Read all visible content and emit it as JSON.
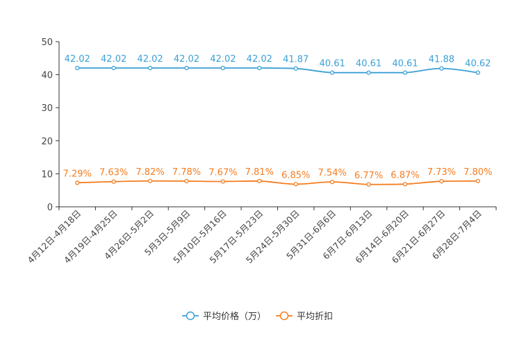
{
  "chart_data": {
    "type": "line",
    "categories": [
      "4月12日-4月18日",
      "4月19日-4月25日",
      "4月26日-5月2日",
      "5月3日-5月9日",
      "5月10日-5月16日",
      "5月17日-5月23日",
      "5月24日-5月30日",
      "5月31日-6月6日",
      "6月7日-6月13日",
      "6月14日-6月20日",
      "6月21日-6月27日",
      "6月28日-7月4日"
    ],
    "ylim": [
      0,
      50
    ],
    "yticks": [
      0,
      10,
      20,
      30,
      40,
      50
    ],
    "series": [
      {
        "name": "平均价格（万）",
        "color": "#3a9fd6",
        "values": [
          42.02,
          42.02,
          42.02,
          42.02,
          42.02,
          42.02,
          41.87,
          40.61,
          40.61,
          40.61,
          41.88,
          40.62
        ],
        "labels": [
          "42.02",
          "42.02",
          "42.02",
          "42.02",
          "42.02",
          "42.02",
          "41.87",
          "40.61",
          "40.61",
          "40.61",
          "41.88",
          "40.62"
        ]
      },
      {
        "name": "平均折扣",
        "color": "#f57c1f",
        "values": [
          7.29,
          7.63,
          7.82,
          7.78,
          7.67,
          7.81,
          6.85,
          7.54,
          6.77,
          6.87,
          7.73,
          7.8
        ],
        "labels": [
          "7.29%",
          "7.63%",
          "7.82%",
          "7.78%",
          "7.67%",
          "7.81%",
          "6.85%",
          "7.54%",
          "6.77%",
          "6.87%",
          "7.73%",
          "7.80%"
        ]
      }
    ],
    "legend_position": "bottom-center",
    "grid": false
  }
}
